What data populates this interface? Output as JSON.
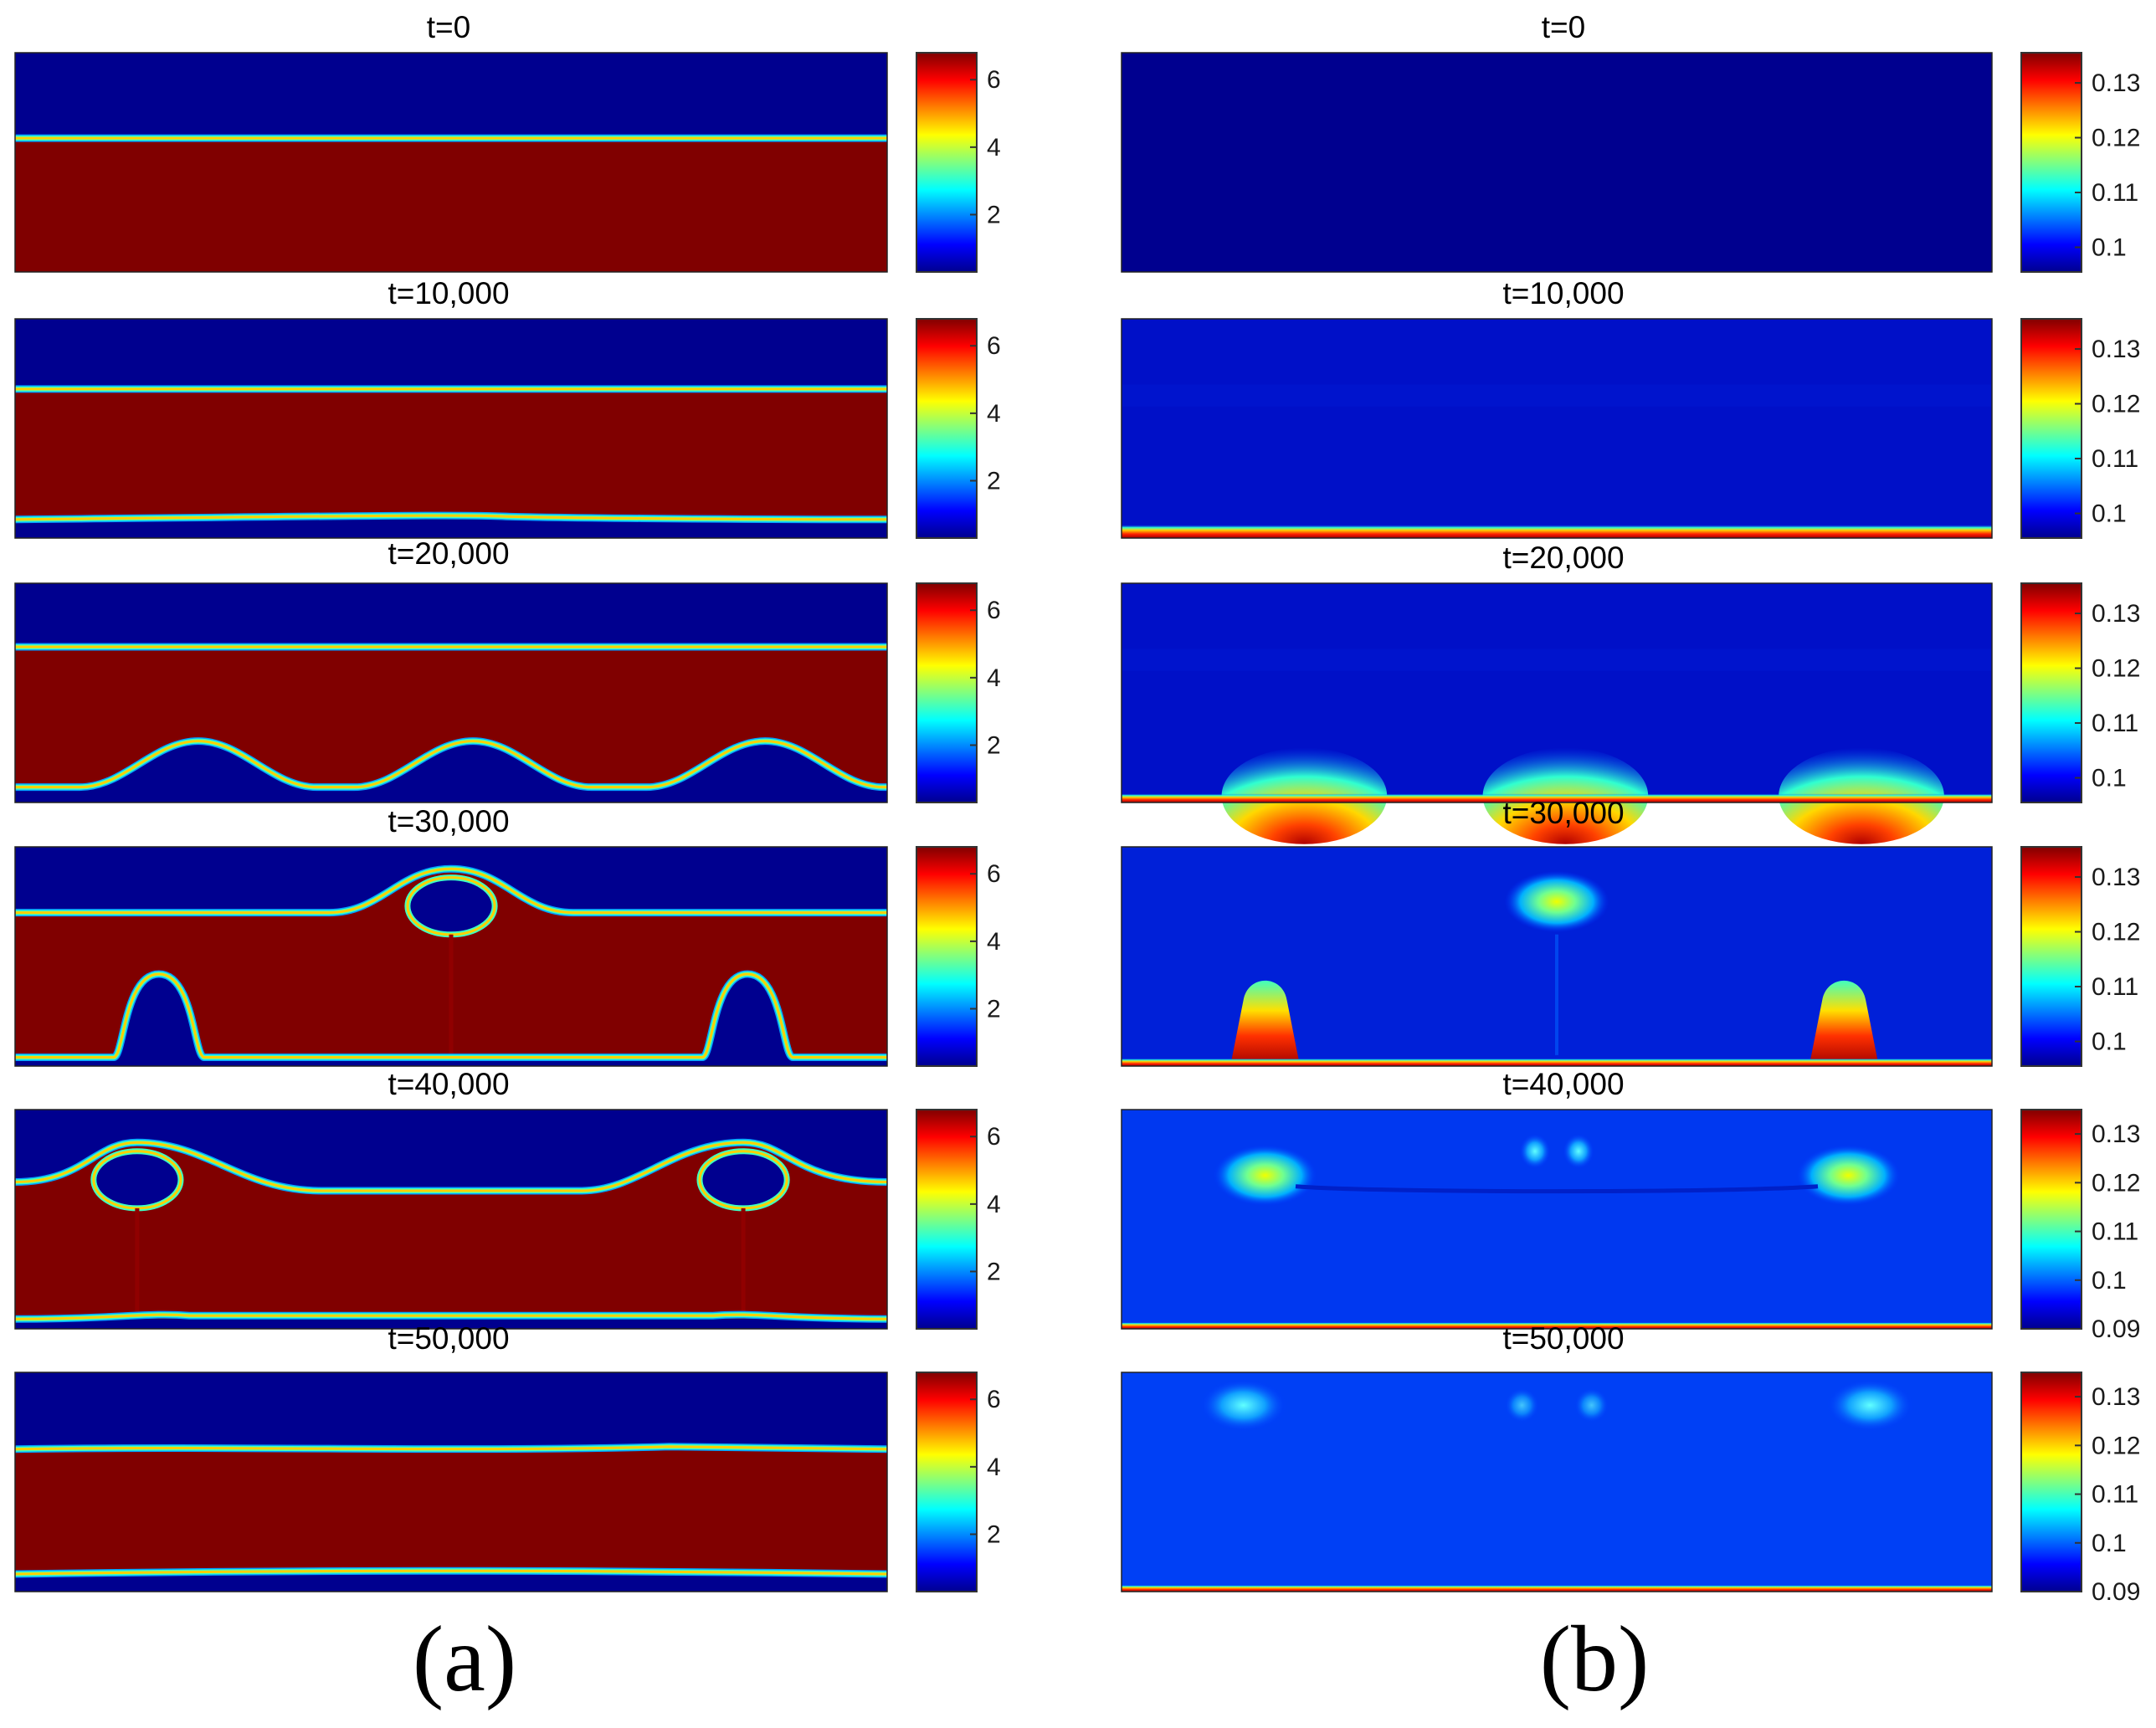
{
  "chart_data": {
    "type": "heatmap",
    "colormap": "jet",
    "columns": [
      {
        "caption": "(a)",
        "colorbar": {
          "min": 0.3,
          "max": 6.8,
          "ticks": [
            "2",
            "4",
            "6"
          ],
          "tick_values": [
            2,
            4,
            6
          ]
        },
        "panels": [
          {
            "title": "t=0",
            "step": 0
          },
          {
            "title": "t=10,000",
            "step": 10000
          },
          {
            "title": "t=20,000",
            "step": 20000
          },
          {
            "title": "t=30,000",
            "step": 30000
          },
          {
            "title": "t=40,000",
            "step": 40000
          },
          {
            "title": "t=50,000",
            "step": 50000
          }
        ]
      },
      {
        "caption": "(b)",
        "colorbar_ranges": [
          {
            "min": 0.0955,
            "max": 0.1355,
            "ticks": [
              "0.1",
              "0.11",
              "0.12",
              "0.13"
            ],
            "tick_values": [
              0.1,
              0.11,
              0.12,
              0.13
            ]
          },
          {
            "min": 0.0955,
            "max": 0.1355,
            "ticks": [
              "0.1",
              "0.11",
              "0.12",
              "0.13"
            ],
            "tick_values": [
              0.1,
              0.11,
              0.12,
              0.13
            ]
          },
          {
            "min": 0.0955,
            "max": 0.1355,
            "ticks": [
              "0.1",
              "0.11",
              "0.12",
              "0.13"
            ],
            "tick_values": [
              0.1,
              0.11,
              0.12,
              0.13
            ]
          },
          {
            "min": 0.0955,
            "max": 0.1355,
            "ticks": [
              "0.1",
              "0.11",
              "0.12",
              "0.13"
            ],
            "tick_values": [
              0.1,
              0.11,
              0.12,
              0.13
            ]
          },
          {
            "min": 0.09,
            "max": 0.135,
            "ticks": [
              "0.09",
              "0.1",
              "0.11",
              "0.12",
              "0.13"
            ],
            "tick_values": [
              0.09,
              0.1,
              0.11,
              0.12,
              0.13
            ]
          },
          {
            "min": 0.09,
            "max": 0.135,
            "ticks": [
              "0.09",
              "0.1",
              "0.11",
              "0.12",
              "0.13"
            ],
            "tick_values": [
              0.09,
              0.1,
              0.11,
              0.12,
              0.13
            ]
          }
        ],
        "panels": [
          {
            "title": "t=0",
            "step": 0
          },
          {
            "title": "t=10,000",
            "step": 10000
          },
          {
            "title": "t=20,000",
            "step": 20000
          },
          {
            "title": "t=30,000",
            "step": 30000
          },
          {
            "title": "t=40,000",
            "step": 40000
          },
          {
            "title": "t=50,000",
            "step": 50000
          }
        ]
      }
    ]
  }
}
